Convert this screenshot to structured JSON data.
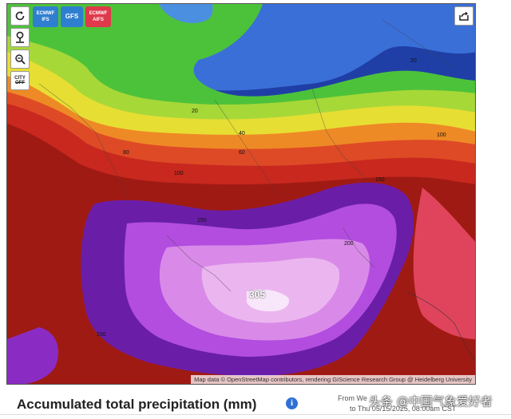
{
  "controls": {
    "refresh_icon": "refresh-icon",
    "location_icon": "map-pin-icon",
    "zoom_icon": "zoom-icon",
    "city_line1": "CITY",
    "city_line2": "OFF",
    "share_icon": "share-icon"
  },
  "models": [
    {
      "line1": "ECMWF",
      "line2": "IFS",
      "color": "#2f7fd0"
    },
    {
      "line1": "GFS",
      "line2": "",
      "color": "#2f7fd0"
    },
    {
      "line1": "ECMWF",
      "line2": "AIFS",
      "color": "#e0394b"
    }
  ],
  "contours": {
    "c20_north": "20",
    "c20_east": "20",
    "c40": "40",
    "c60": "60",
    "c80": "80",
    "c100_west": "100",
    "c100_east": "100",
    "c150_center": "150",
    "c150_east": "150",
    "c200": "200",
    "c150_south": "150"
  },
  "max_value": "305",
  "attribution": "Map data © OpenStreetMap contributors, rendering GIScience Research Group @ Heidelberg University",
  "title": "Accumulated total precipitation (mm)",
  "info_icon": "info-icon",
  "from_text": "From We",
  "to_text": "to Thu 05/15/2025, 08:00am CST",
  "watermark": "头条 @中国气象爱好者",
  "colors": {
    "blue_dark": "#1f3fa6",
    "blue": "#3a6fd8",
    "green": "#4cc23a",
    "yellow": "#e7de33",
    "orange": "#ee8a25",
    "red": "#c8281e",
    "dark_red": "#8e1410",
    "purple": "#6a1ea8",
    "magenta": "#b24de0",
    "pink": "#e79be9"
  }
}
